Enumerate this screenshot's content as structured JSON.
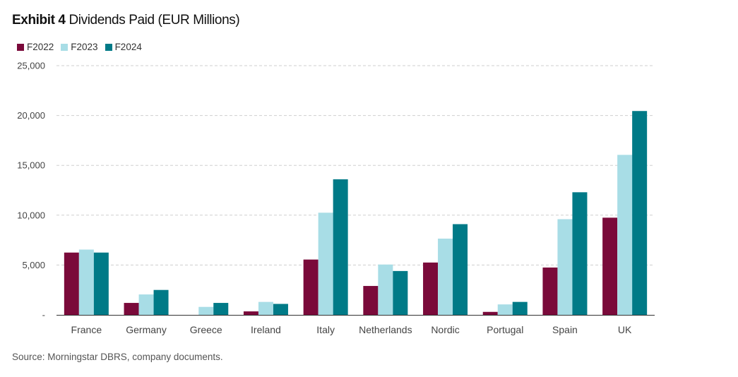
{
  "title_bold": "Exhibit 4",
  "title_rest": "Dividends Paid (EUR Millions)",
  "source": "Source: Morningstar DBRS, company documents.",
  "chart_data": {
    "type": "bar",
    "title": "Exhibit 4 Dividends Paid (EUR Millions)",
    "categories": [
      "France",
      "Germany",
      "Greece",
      "Ireland",
      "Italy",
      "Netherlands",
      "Nordic",
      "Portugal",
      "Spain",
      "UK"
    ],
    "series": [
      {
        "name": "F2022",
        "color": "#7a0a3a",
        "values": [
          6250,
          1200,
          0,
          350,
          5550,
          2900,
          5250,
          300,
          4750,
          9750
        ]
      },
      {
        "name": "F2023",
        "color": "#a8dde6",
        "values": [
          6550,
          2050,
          800,
          1300,
          10250,
          5050,
          7650,
          1050,
          9600,
          16050
        ]
      },
      {
        "name": "F2024",
        "color": "#007a87",
        "values": [
          6250,
          2500,
          1200,
          1100,
          13600,
          4400,
          9100,
          1300,
          12300,
          20450
        ]
      }
    ],
    "yticks": [
      "-",
      "5,000",
      "10,000",
      "15,000",
      "20,000",
      "25,000"
    ],
    "ylim": [
      0,
      25000
    ],
    "ystep": 5000,
    "grid": true,
    "legend_position": "top-left",
    "xlabel": "",
    "ylabel": ""
  }
}
